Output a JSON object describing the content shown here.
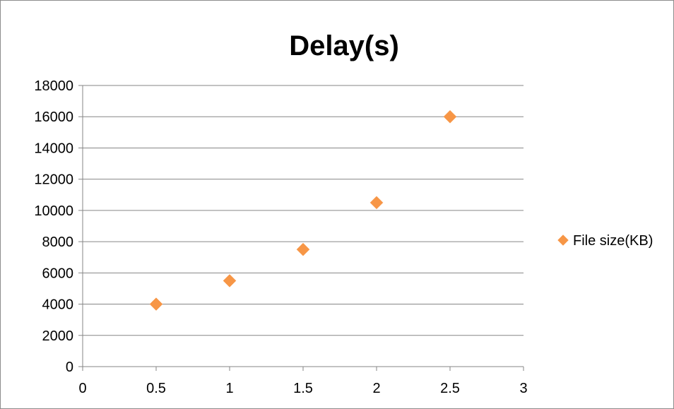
{
  "chart_data": {
    "type": "scatter",
    "title": "Delay(s)",
    "xlabel": "",
    "ylabel": "",
    "xlim": [
      0,
      3
    ],
    "ylim": [
      0,
      18000
    ],
    "x_ticks": [
      "0",
      "0.5",
      "1",
      "1.5",
      "2",
      "2.5",
      "3"
    ],
    "y_ticks": [
      "0",
      "2000",
      "4000",
      "6000",
      "8000",
      "10000",
      "12000",
      "14000",
      "16000",
      "18000"
    ],
    "grid": "horizontal",
    "legend_position": "right",
    "series": [
      {
        "name": "File size(KB)",
        "color": "#F79646",
        "marker": "diamond",
        "points": [
          {
            "x": 0.5,
            "y": 4000
          },
          {
            "x": 1,
            "y": 5500
          },
          {
            "x": 1.5,
            "y": 7500
          },
          {
            "x": 2,
            "y": 10500
          },
          {
            "x": 2.5,
            "y": 16000
          }
        ]
      }
    ]
  }
}
